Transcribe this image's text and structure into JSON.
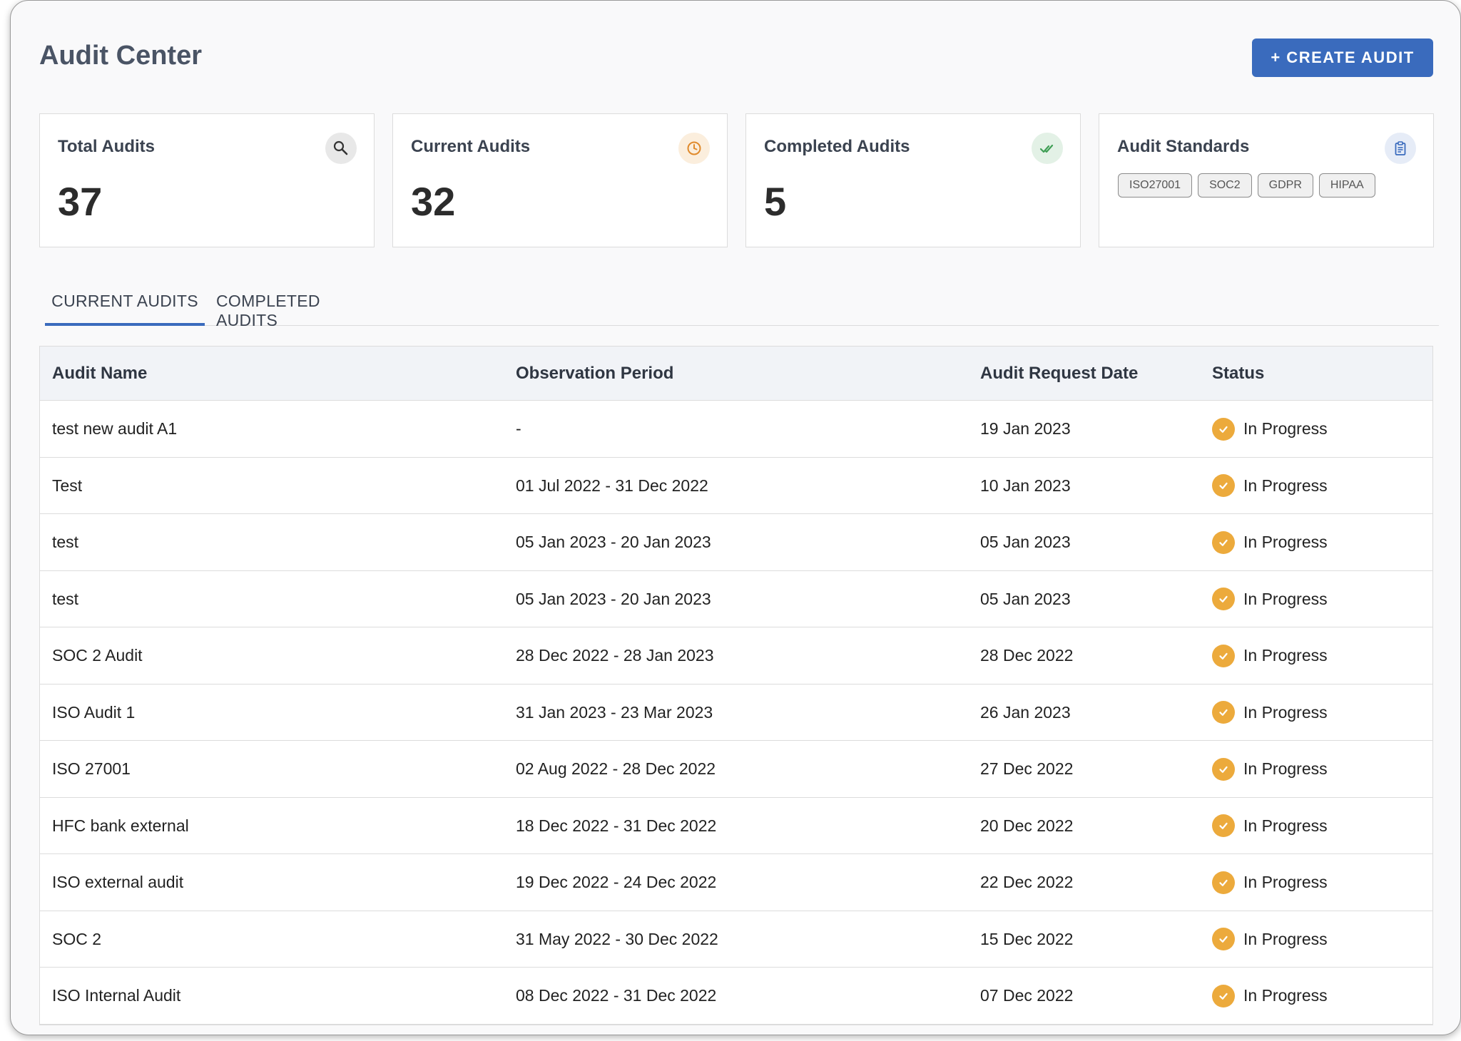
{
  "header": {
    "title": "Audit Center",
    "create_label": "+ CREATE AUDIT"
  },
  "cards": {
    "total": {
      "label": "Total Audits",
      "value": "37",
      "icon": "search-icon"
    },
    "current": {
      "label": "Current Audits",
      "value": "32",
      "icon": "clock-icon"
    },
    "completed": {
      "label": "Completed Audits",
      "value": "5",
      "icon": "double-check-icon"
    },
    "standards": {
      "label": "Audit Standards",
      "icon": "clipboard-icon",
      "chips": [
        "ISO27001",
        "SOC2",
        "GDPR",
        "HIPAA"
      ]
    }
  },
  "tabs": {
    "current": "CURRENT AUDITS",
    "completed": "COMPLETED AUDITS",
    "active": "current"
  },
  "table": {
    "columns": [
      "Audit Name",
      "Observation Period",
      "Audit Request Date",
      "Status"
    ],
    "rows": [
      {
        "name": "test new audit A1",
        "period": "-",
        "request_date": "19 Jan 2023",
        "status": "In Progress"
      },
      {
        "name": "Test",
        "period": "01 Jul 2022 - 31 Dec 2022",
        "request_date": "10 Jan 2023",
        "status": "In Progress"
      },
      {
        "name": "test",
        "period": "05 Jan 2023 - 20 Jan 2023",
        "request_date": "05 Jan 2023",
        "status": "In Progress"
      },
      {
        "name": "test",
        "period": "05 Jan 2023 - 20 Jan 2023",
        "request_date": "05 Jan 2023",
        "status": "In Progress"
      },
      {
        "name": "SOC 2 Audit",
        "period": "28 Dec 2022 - 28 Jan 2023",
        "request_date": "28 Dec 2022",
        "status": "In Progress"
      },
      {
        "name": "ISO Audit 1",
        "period": "31 Jan 2023 - 23 Mar 2023",
        "request_date": "26 Jan 2023",
        "status": "In Progress"
      },
      {
        "name": "ISO 27001",
        "period": "02 Aug 2022 - 28 Dec 2022",
        "request_date": "27 Dec 2022",
        "status": "In Progress"
      },
      {
        "name": "HFC bank external",
        "period": "18 Dec 2022 - 31 Dec 2022",
        "request_date": "20 Dec 2022",
        "status": "In Progress"
      },
      {
        "name": "ISO external audit",
        "period": "19 Dec 2022 - 24 Dec 2022",
        "request_date": "22 Dec 2022",
        "status": "In Progress"
      },
      {
        "name": "SOC 2",
        "period": "31 May 2022 - 30 Dec 2022",
        "request_date": "15 Dec 2022",
        "status": "In Progress"
      },
      {
        "name": "ISO Internal Audit",
        "period": "08 Dec 2022 - 31 Dec 2022",
        "request_date": "07 Dec 2022",
        "status": "In Progress"
      }
    ]
  },
  "colors": {
    "accent": "#3a6bbd",
    "status_in_progress": "#ecaa3c",
    "completed_check": "#3f9e55",
    "clock": "#e08a2c"
  }
}
